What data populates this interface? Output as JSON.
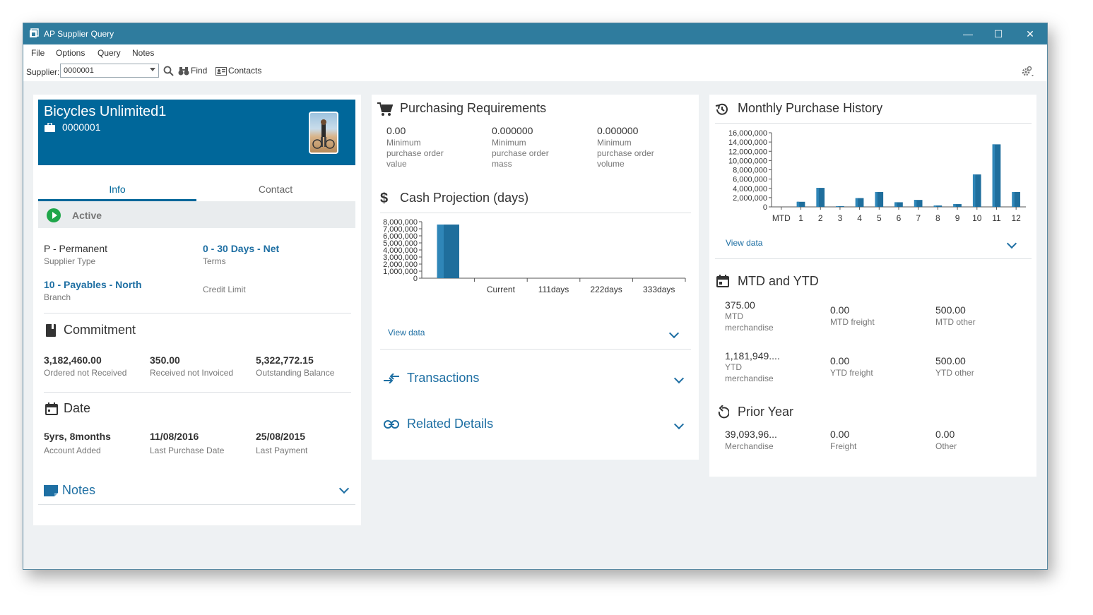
{
  "window": {
    "title": "AP Supplier Query"
  },
  "menu": [
    "File",
    "Options",
    "Query",
    "Notes"
  ],
  "toolbar": {
    "supplier_label": "Supplier:",
    "supplier_value": "0000001",
    "find_label": "Find",
    "contacts_label": "Contacts"
  },
  "supplier": {
    "name": "Bicycles Unlimited1",
    "code": "0000001",
    "tabs": [
      "Info",
      "Contact"
    ],
    "status": "Active",
    "supplier_type": {
      "value": "P - Permanent",
      "label": "Supplier Type"
    },
    "terms": {
      "value": "0 - 30 Days - Net",
      "label": "Terms"
    },
    "branch": {
      "value": "10 - Payables - North",
      "label": "Branch"
    },
    "credit_limit": {
      "value": "",
      "label": "Credit Limit"
    }
  },
  "commitment": {
    "title": "Commitment",
    "items": [
      {
        "value": "3,182,460.00",
        "label": "Ordered not Received"
      },
      {
        "value": "350.00",
        "label": "Received not Invoiced"
      },
      {
        "value": "5,322,772.15",
        "label": "Outstanding Balance"
      }
    ]
  },
  "date": {
    "title": "Date",
    "items": [
      {
        "value": "5yrs, 8months",
        "label": "Account Added"
      },
      {
        "value": "11/08/2016",
        "label": "Last Purchase Date"
      },
      {
        "value": "25/08/2015",
        "label": "Last Payment"
      }
    ]
  },
  "notes": {
    "title": "Notes"
  },
  "purchasing": {
    "title": "Purchasing Requirements",
    "items": [
      {
        "value": "0.00",
        "label_lines": [
          "Minimum",
          "purchase order",
          "value"
        ]
      },
      {
        "value": "0.000000",
        "label_lines": [
          "Minimum",
          "purchase order",
          "mass"
        ]
      },
      {
        "value": "0.000000",
        "label_lines": [
          "Minimum",
          "purchase order",
          "volume"
        ]
      }
    ]
  },
  "cash_projection": {
    "title": "Cash Projection (days)",
    "view_data": "View data"
  },
  "transactions": {
    "title": "Transactions"
  },
  "related": {
    "title": "Related Details"
  },
  "monthly": {
    "title": "Monthly Purchase History",
    "view_data": "View data"
  },
  "mtd_ytd": {
    "title": "MTD and YTD",
    "row1": [
      {
        "value": "375.00",
        "label_lines": [
          "MTD",
          "merchandise"
        ]
      },
      {
        "value": "0.00",
        "label_lines": [
          "MTD freight"
        ]
      },
      {
        "value": "500.00",
        "label_lines": [
          "MTD other"
        ]
      }
    ],
    "row2": [
      {
        "value": "1,181,949....",
        "label_lines": [
          "YTD",
          "merchandise"
        ]
      },
      {
        "value": "0.00",
        "label_lines": [
          "YTD freight"
        ]
      },
      {
        "value": "500.00",
        "label_lines": [
          "YTD other"
        ]
      }
    ]
  },
  "prior_year": {
    "title": "Prior Year",
    "items": [
      {
        "value": "39,093,96...",
        "label": "Merchandise"
      },
      {
        "value": "0.00",
        "label": "Freight"
      },
      {
        "value": "0.00",
        "label": "Other"
      }
    ]
  },
  "chart_data": [
    {
      "type": "bar",
      "name": "cash-projection",
      "categories": [
        "",
        "Current",
        "111days",
        "222days",
        "333days"
      ],
      "values": [
        7600000,
        0,
        0,
        0,
        0
      ],
      "ylim": [
        0,
        8000000
      ],
      "yticks": [
        "8,000,000",
        "7,000,000",
        "6,000,000",
        "5,000,000",
        "4,000,000",
        "3,000,000",
        "2,000,000",
        "1,000,000",
        "0"
      ],
      "color": "#1f6e9c"
    },
    {
      "type": "bar",
      "name": "monthly-purchase-history",
      "categories": [
        "MTD",
        "1",
        "2",
        "3",
        "4",
        "5",
        "6",
        "7",
        "8",
        "9",
        "10",
        "11",
        "12"
      ],
      "values": [
        0,
        1100000,
        4100000,
        150000,
        1900000,
        3200000,
        1000000,
        1500000,
        300000,
        600000,
        7000000,
        13500000,
        3200000
      ],
      "ylim": [
        0,
        16000000
      ],
      "yticks": [
        "16,000,000",
        "14,000,000",
        "12,000,000",
        "10,000,000",
        "8,000,000",
        "6,000,000",
        "4,000,000",
        "2,000,000",
        "0"
      ],
      "color": "#1f6e9c"
    }
  ]
}
